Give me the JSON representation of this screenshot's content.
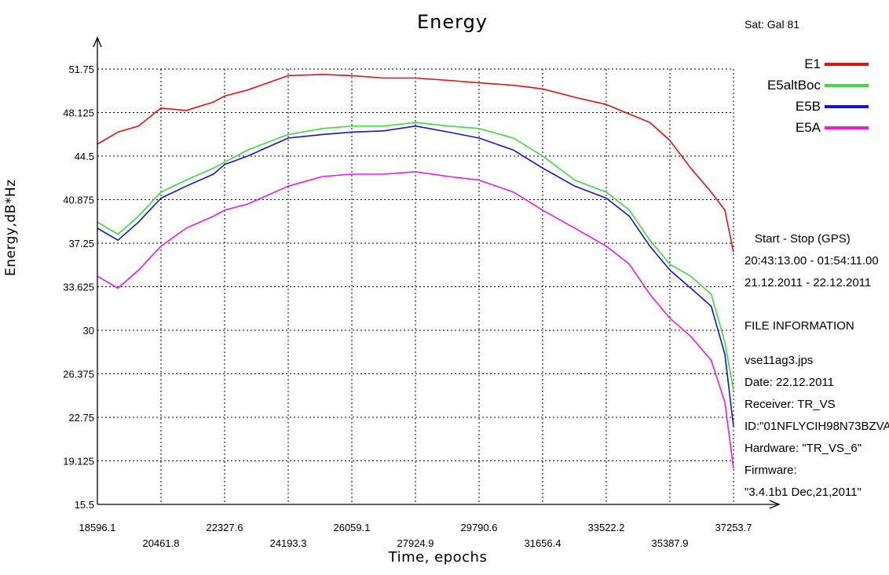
{
  "chart_data": {
    "type": "line",
    "title": "Energy",
    "xlabel": "Time, epochs",
    "ylabel": "Energy,dB*Hz",
    "xlim": [
      18596.1,
      37253.7
    ],
    "ylim": [
      15.5,
      51.75
    ],
    "x_ticks_upper": [
      "18596.1",
      "22327.6",
      "26059.1",
      "29790.6",
      "33522.2",
      "37253.7"
    ],
    "x_ticks_lower": [
      "20461.8",
      "24193.3",
      "27924.9",
      "31656.4",
      "35387.9"
    ],
    "y_ticks": [
      "51.75",
      "48.125",
      "44.5",
      "40.875",
      "37.25",
      "33.625",
      "30",
      "26.375",
      "22.75",
      "19.125",
      "15.5"
    ],
    "grid": true,
    "legend_position": "top-right",
    "series": [
      {
        "name": "E1",
        "color": "#e81010",
        "x": [
          18596.1,
          19200,
          19800,
          20461.8,
          21200,
          22000,
          22327.6,
          23000,
          24193.3,
          25200,
          26059.1,
          27000,
          27924.9,
          28900,
          29790.6,
          30800,
          31656.4,
          32600,
          33522.2,
          34200,
          34800,
          35387.9,
          36000,
          36600,
          37000,
          37253.7
        ],
        "y": [
          45.5,
          46.5,
          47.0,
          48.5,
          48.3,
          49.0,
          49.5,
          50.0,
          51.2,
          51.3,
          51.2,
          51.0,
          51.0,
          50.8,
          50.6,
          50.4,
          50.1,
          49.4,
          48.8,
          48.0,
          47.3,
          45.8,
          43.5,
          41.5,
          40.0,
          36.5
        ]
      },
      {
        "name": "E5altBoc",
        "color": "#3ddc3d",
        "x": [
          18596.1,
          19200,
          19800,
          20461.8,
          21200,
          22000,
          22327.6,
          23000,
          24193.3,
          25200,
          26059.1,
          27000,
          27924.9,
          28900,
          29790.6,
          30800,
          31656.4,
          32600,
          33522.2,
          34200,
          34800,
          35387.9,
          36000,
          36600,
          37000,
          37253.7
        ],
        "y": [
          39.0,
          38.0,
          39.5,
          41.5,
          42.5,
          43.5,
          44.0,
          45.0,
          46.3,
          46.8,
          47.0,
          47.0,
          47.3,
          47.0,
          46.8,
          46.0,
          44.5,
          42.5,
          41.5,
          40.0,
          37.5,
          35.5,
          34.5,
          33.0,
          29.0,
          25.0
        ]
      },
      {
        "name": "E5B",
        "color": "#1414d8",
        "x": [
          18596.1,
          19200,
          19800,
          20461.8,
          21200,
          22000,
          22327.6,
          23000,
          24193.3,
          25200,
          26059.1,
          27000,
          27924.9,
          28900,
          29790.6,
          30800,
          31656.4,
          32600,
          33522.2,
          34200,
          34800,
          35387.9,
          36000,
          36600,
          37000,
          37253.7
        ],
        "y": [
          38.5,
          37.5,
          39.0,
          41.0,
          42.0,
          43.0,
          43.8,
          44.5,
          46.0,
          46.3,
          46.5,
          46.6,
          47.0,
          46.5,
          46.0,
          45.0,
          43.5,
          42.0,
          41.0,
          39.5,
          37.0,
          35.0,
          33.5,
          32.0,
          28.0,
          22.0
        ]
      },
      {
        "name": "E5A",
        "color": "#ee18ee",
        "x": [
          18596.1,
          19200,
          19800,
          20461.8,
          21200,
          22000,
          22327.6,
          23000,
          24193.3,
          25200,
          26059.1,
          27000,
          27924.9,
          28900,
          29790.6,
          30800,
          31656.4,
          32600,
          33522.2,
          34200,
          34800,
          35387.9,
          36000,
          36600,
          37000,
          37253.7
        ],
        "y": [
          34.5,
          33.5,
          35.0,
          37.0,
          38.5,
          39.5,
          40.0,
          40.5,
          42.0,
          42.8,
          43.0,
          43.0,
          43.2,
          42.8,
          42.5,
          41.5,
          40.0,
          38.5,
          37.0,
          35.5,
          33.0,
          31.0,
          29.5,
          27.5,
          24.0,
          18.5
        ]
      }
    ]
  },
  "sat_label": "Sat: Gal   81",
  "info": {
    "start_stop_title": "Start  -  Stop  (GPS)",
    "time_range": "20:43:13.00 - 01:54:11.00",
    "date_range": "21.12.2011 - 22.12.2011",
    "file_info_title": "FILE INFORMATION",
    "file_name": "vse11ag3.jps",
    "date": "Date: 22.12.2011",
    "receiver": "Receiver: TR_VS",
    "id": "ID:\"01NFLYCIH98N73BZVA",
    "hardware": "Hardware: \"TR_VS_6\"",
    "firmware": "Firmware:",
    "firmware_version": "\"3.4.1b1 Dec,21,2011\""
  }
}
